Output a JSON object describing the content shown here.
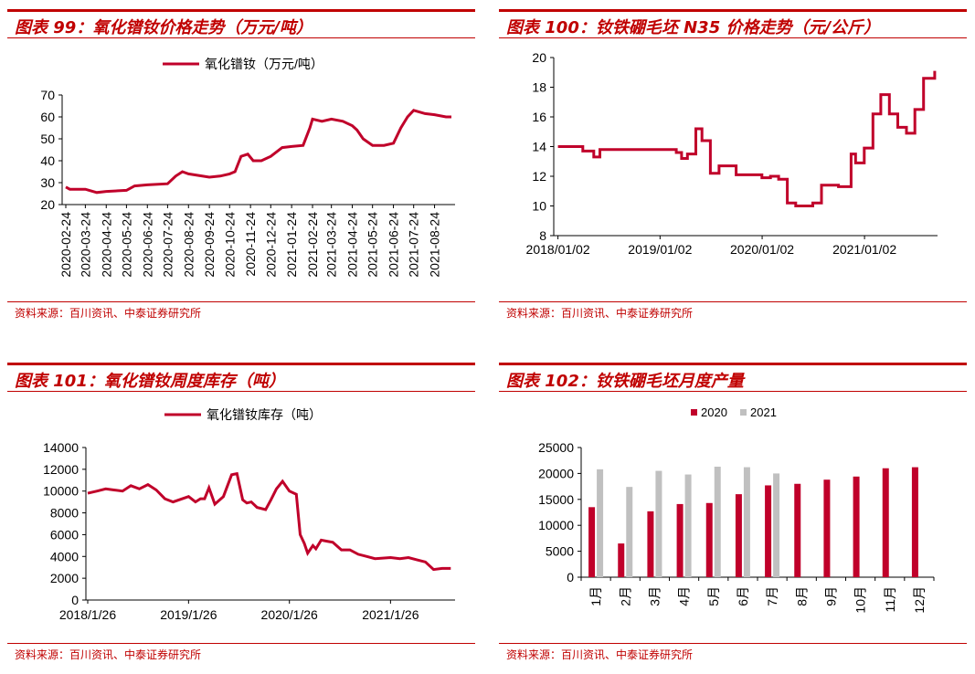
{
  "panels": {
    "p99": {
      "title": "图表 99：氧化镨钕价格走势（万元/吨）",
      "source": "资料来源：百川资讯、中泰证券研究所"
    },
    "p100": {
      "title": "图表 100：钕铁硼毛坯 N35 价格走势（元/公斤）",
      "source": "资料来源：百川资讯、中泰证券研究所"
    },
    "p101": {
      "title": "图表 101：氧化镨钕周度库存（吨）",
      "source": "资料来源：百川资讯、中泰证券研究所"
    },
    "p102": {
      "title": "图表 102：钕铁硼毛坯月度产量",
      "source": "资料来源：百川资讯、中泰证券研究所"
    }
  },
  "colors": {
    "accent": "#c00000",
    "series_red": "#c0002a",
    "series_gray": "#c0c0c0"
  },
  "chart_data": [
    {
      "id": "p99",
      "type": "line",
      "title": "",
      "legend": [
        "氧化镨钕（万元/吨）"
      ],
      "legend_position": "top",
      "ylim": [
        20,
        70
      ],
      "yticks": [
        20,
        30,
        40,
        50,
        60,
        70
      ],
      "x_tick_labels": [
        "2020-02-24",
        "2020-03-24",
        "2020-04-24",
        "2020-05-24",
        "2020-06-24",
        "2020-07-24",
        "2020-08-24",
        "2020-09-24",
        "2020-10-24",
        "2020-11-24",
        "2020-12-24",
        "2021-01-24",
        "2021-02-24",
        "2021-03-24",
        "2021-04-24",
        "2021-05-24",
        "2021-06-24",
        "2021-07-24",
        "2021-08-24"
      ],
      "series": [
        {
          "name": "氧化镨钕（万元/吨）",
          "x": [
            "2020-02-24",
            "2020-03-01",
            "2020-03-24",
            "2020-04-10",
            "2020-04-24",
            "2020-05-24",
            "2020-06-05",
            "2020-06-24",
            "2020-07-24",
            "2020-08-05",
            "2020-08-15",
            "2020-08-24",
            "2020-09-24",
            "2020-10-10",
            "2020-10-24",
            "2020-11-01",
            "2020-11-10",
            "2020-11-20",
            "2020-11-28",
            "2020-12-10",
            "2020-12-24",
            "2021-01-10",
            "2021-01-24",
            "2021-02-10",
            "2021-02-20",
            "2021-02-24",
            "2021-03-10",
            "2021-03-24",
            "2021-04-10",
            "2021-04-24",
            "2021-05-01",
            "2021-05-10",
            "2021-05-24",
            "2021-06-10",
            "2021-06-24",
            "2021-07-05",
            "2021-07-15",
            "2021-07-24",
            "2021-08-10",
            "2021-08-24",
            "2021-09-10",
            "2021-09-18"
          ],
          "y": [
            28,
            27,
            27,
            25.5,
            26,
            26.5,
            28.5,
            29,
            29.5,
            33,
            35,
            34,
            32.5,
            33,
            34,
            35,
            42,
            43,
            40,
            40,
            42,
            46,
            46.5,
            47,
            55,
            59,
            58,
            59,
            58,
            56,
            54,
            50,
            47,
            47,
            48,
            55,
            60,
            63,
            61.5,
            61,
            60,
            60
          ]
        }
      ]
    },
    {
      "id": "p100",
      "type": "line",
      "title": "",
      "ylim": [
        8,
        20
      ],
      "yticks": [
        8,
        10,
        12,
        14,
        16,
        18,
        20
      ],
      "x_tick_labels": [
        "2018/01/02",
        "2019/01/02",
        "2020/01/02",
        "2021/01/02"
      ],
      "series": [
        {
          "name": "",
          "x": [
            "2018-01-02",
            "2018-03-01",
            "2018-04-01",
            "2018-05-10",
            "2018-06-01",
            "2019-02-01",
            "2019-03-01",
            "2019-03-20",
            "2019-04-10",
            "2019-05-10",
            "2019-06-01",
            "2019-07-01",
            "2019-08-01",
            "2019-10-01",
            "2020-01-01",
            "2020-02-01",
            "2020-03-01",
            "2020-04-01",
            "2020-05-01",
            "2020-07-01",
            "2020-08-01",
            "2020-10-01",
            "2020-11-15",
            "2020-12-01",
            "2021-01-01",
            "2021-02-01",
            "2021-03-01",
            "2021-04-01",
            "2021-05-01",
            "2021-06-01",
            "2021-07-01",
            "2021-08-01",
            "2021-09-10"
          ],
          "y": [
            14,
            14,
            13.7,
            13.3,
            13.8,
            13.8,
            13.6,
            13.2,
            13.5,
            15.2,
            14.4,
            12.2,
            12.7,
            12.1,
            11.9,
            12,
            11.8,
            10.2,
            10,
            10.2,
            11.4,
            11.3,
            13.5,
            12.9,
            13.9,
            16.2,
            17.5,
            16.2,
            15.3,
            14.9,
            16.5,
            18.6,
            19.1
          ]
        }
      ]
    },
    {
      "id": "p101",
      "type": "line",
      "title": "",
      "legend": [
        "氧化镨钕库存（吨）"
      ],
      "legend_position": "top",
      "ylim": [
        0,
        14000
      ],
      "yticks": [
        0,
        2000,
        4000,
        6000,
        8000,
        10000,
        12000,
        14000
      ],
      "x_tick_labels": [
        "2018/1/26",
        "2019/1/26",
        "2020/1/26",
        "2021/1/26"
      ],
      "series": [
        {
          "name": "氧化镨钕库存（吨）",
          "x": [
            "2018-01-26",
            "2018-03-01",
            "2018-04-01",
            "2018-05-01",
            "2018-06-01",
            "2018-07-01",
            "2018-08-01",
            "2018-09-01",
            "2018-10-01",
            "2018-11-01",
            "2018-12-01",
            "2019-01-26",
            "2019-02-20",
            "2019-03-10",
            "2019-03-25",
            "2019-04-10",
            "2019-05-01",
            "2019-06-01",
            "2019-07-01",
            "2019-07-20",
            "2019-08-10",
            "2019-08-25",
            "2019-09-10",
            "2019-10-01",
            "2019-11-01",
            "2019-11-20",
            "2019-12-10",
            "2020-01-01",
            "2020-01-26",
            "2020-02-20",
            "2020-03-05",
            "2020-03-20",
            "2020-04-01",
            "2020-04-20",
            "2020-05-01",
            "2020-05-20",
            "2020-06-10",
            "2020-07-01",
            "2020-08-01",
            "2020-09-01",
            "2020-10-01",
            "2020-11-01",
            "2020-12-01",
            "2021-01-26",
            "2021-03-01",
            "2021-04-01",
            "2021-05-01",
            "2021-06-01",
            "2021-07-01",
            "2021-08-01",
            "2021-09-01"
          ],
          "y": [
            9800,
            10000,
            10200,
            10100,
            10000,
            10500,
            10200,
            10600,
            10100,
            9300,
            9000,
            9500,
            9000,
            9300,
            9300,
            10300,
            8800,
            9500,
            11500,
            11600,
            9200,
            8900,
            9000,
            8500,
            8300,
            9200,
            10200,
            10900,
            10000,
            9700,
            6000,
            5200,
            4300,
            5000,
            4700,
            5500,
            5400,
            5300,
            4600,
            4600,
            4200,
            4000,
            3800,
            3900,
            3800,
            3900,
            3700,
            3500,
            2800,
            2900,
            2900
          ]
        }
      ]
    },
    {
      "id": "p102",
      "type": "bar",
      "title": "",
      "categories": [
        "1月",
        "2月",
        "3月",
        "4月",
        "5月",
        "6月",
        "7月",
        "8月",
        "9月",
        "10月",
        "11月",
        "12月"
      ],
      "legend_position": "top",
      "ylim": [
        0,
        25000
      ],
      "yticks": [
        0,
        5000,
        10000,
        15000,
        20000,
        25000
      ],
      "series": [
        {
          "name": "2020",
          "values": [
            13500,
            6500,
            12700,
            14100,
            14300,
            16000,
            17700,
            18000,
            18800,
            19400,
            21000,
            21200
          ]
        },
        {
          "name": "2021",
          "values": [
            20800,
            17400,
            20500,
            19800,
            21300,
            21200,
            20000,
            null,
            null,
            null,
            null,
            null
          ]
        }
      ]
    }
  ]
}
